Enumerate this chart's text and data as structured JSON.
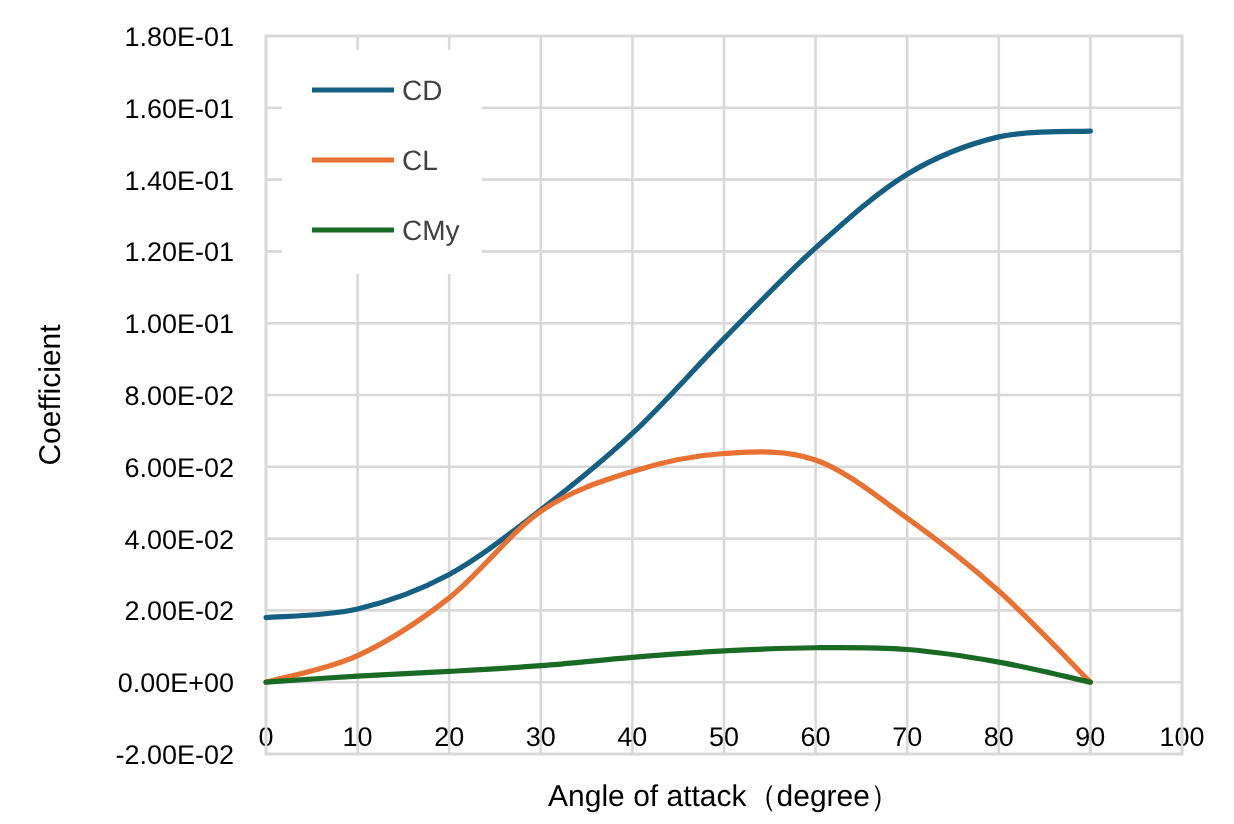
{
  "chart_data": {
    "type": "line",
    "xlabel": "Angle of attack（degree）",
    "ylabel": "Coefficient",
    "x": [
      0,
      10,
      20,
      30,
      40,
      50,
      60,
      70,
      80,
      90
    ],
    "series": [
      {
        "name": "CD",
        "color": "#156082",
        "values": [
          0.018,
          0.0204,
          0.03,
          0.048,
          0.0693,
          0.0957,
          0.121,
          0.1415,
          0.1519,
          0.1535
        ]
      },
      {
        "name": "CL",
        "color": "#e97132",
        "values": [
          0,
          0.0074,
          0.0235,
          0.0476,
          0.0587,
          0.0637,
          0.0619,
          0.0457,
          0.0254,
          0
        ]
      },
      {
        "name": "CMy",
        "color": "#196b24",
        "values": [
          0,
          0.0017,
          0.003,
          0.0046,
          0.0069,
          0.0087,
          0.0096,
          0.0091,
          0.0056,
          0
        ]
      }
    ],
    "xlim": [
      0,
      100
    ],
    "xticks": [
      0,
      10,
      20,
      30,
      40,
      50,
      60,
      70,
      80,
      90,
      100
    ],
    "ylim": [
      -0.02,
      0.18
    ],
    "yticks": [
      {
        "value": -0.02,
        "label": "-2.00E-02"
      },
      {
        "value": 0,
        "label": "0.00E+00"
      },
      {
        "value": 0.02,
        "label": "2.00E-02"
      },
      {
        "value": 0.04,
        "label": "4.00E-02"
      },
      {
        "value": 0.06,
        "label": "6.00E-02"
      },
      {
        "value": 0.08,
        "label": "8.00E-02"
      },
      {
        "value": 0.1,
        "label": "1.00E-01"
      },
      {
        "value": 0.12,
        "label": "1.20E-01"
      },
      {
        "value": 0.14,
        "label": "1.40E-01"
      },
      {
        "value": 0.16,
        "label": "1.60E-01"
      },
      {
        "value": 0.18,
        "label": "1.80E-01"
      }
    ],
    "grid": true,
    "legend": "top left",
    "marker": "none",
    "line_style": "solid"
  }
}
